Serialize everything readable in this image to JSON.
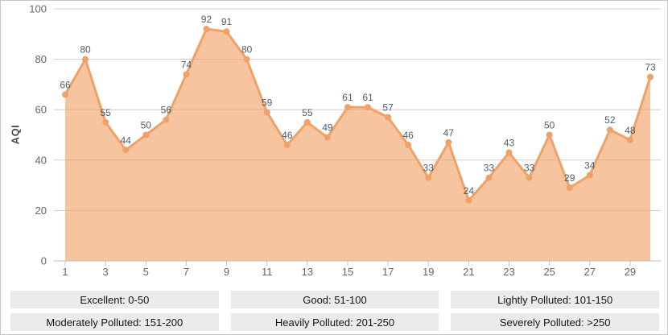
{
  "chart_data": {
    "type": "area",
    "title": "",
    "xlabel": "",
    "ylabel": "AQI",
    "x": [
      1,
      2,
      3,
      4,
      5,
      6,
      7,
      8,
      9,
      10,
      11,
      12,
      13,
      14,
      15,
      16,
      17,
      18,
      19,
      20,
      21,
      22,
      23,
      24,
      25,
      26,
      27,
      28,
      29,
      30
    ],
    "values": [
      66,
      80,
      55,
      44,
      50,
      56,
      74,
      92,
      91,
      80,
      59,
      46,
      55,
      49,
      61,
      61,
      57,
      46,
      33,
      47,
      24,
      33,
      43,
      33,
      50,
      29,
      34,
      52,
      48,
      73
    ],
    "x_labeled_ticks": [
      1,
      3,
      5,
      7,
      9,
      11,
      13,
      15,
      17,
      19,
      21,
      23,
      25,
      27,
      29
    ],
    "y_ticks": [
      0,
      20,
      40,
      60,
      80,
      100
    ],
    "ylim": [
      0,
      100
    ],
    "grid": true,
    "legend_position": "none",
    "colors": {
      "line": "#f0a166",
      "marker": "#f0a166",
      "area_fill": "rgba(241,162,102,0.62)",
      "gridline": "#cccccc",
      "axis_line": "#c0c0c0",
      "axis_text": "#666666",
      "point_label": "#525c66",
      "y_axis_title": "#4a4a4a"
    }
  },
  "legend": {
    "background": "#ebebeb",
    "text_color": "#141414",
    "items": [
      {
        "label": "Excellent: 0-50"
      },
      {
        "label": "Good: 51-100"
      },
      {
        "label": "Lightly Polluted: 101-150"
      },
      {
        "label": "Moderately Polluted: 151-200"
      },
      {
        "label": "Heavily Polluted: 201-250"
      },
      {
        "label": "Severely Polluted: >250"
      }
    ]
  },
  "frame": {
    "border_color": "#c7c7c7",
    "background": "#ffffff"
  }
}
